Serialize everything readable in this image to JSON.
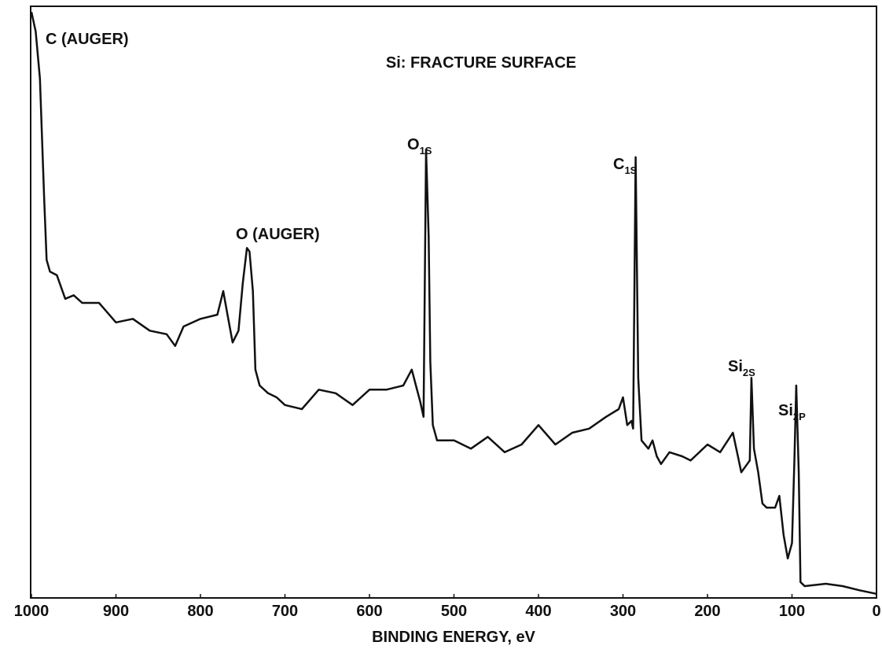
{
  "chart_data": {
    "type": "line",
    "title": "Si: FRACTURE SURFACE",
    "x_label": "BINDING ENERGY, eV",
    "xlim": [
      1000,
      0
    ],
    "xticks": [
      1000,
      900,
      800,
      700,
      600,
      500,
      400,
      300,
      200,
      100,
      0
    ],
    "ylim": [
      0,
      100
    ],
    "color": "#111111",
    "annotations": {
      "c_auger": "C (AUGER)",
      "o_auger": "O (AUGER)",
      "o1s": {
        "main": "O",
        "sub": "1S"
      },
      "c1s": {
        "main": "C",
        "sub": "1S"
      },
      "si2s": {
        "main": "Si",
        "sub": "2S"
      },
      "si2p": {
        "main": "Si",
        "sub": "2P"
      }
    },
    "x": [
      1000,
      995,
      990,
      985,
      982,
      978,
      970,
      960,
      950,
      940,
      920,
      900,
      880,
      860,
      840,
      830,
      820,
      800,
      780,
      773,
      768,
      762,
      755,
      750,
      745,
      742,
      738,
      735,
      730,
      720,
      710,
      700,
      680,
      660,
      640,
      620,
      600,
      580,
      560,
      550,
      545,
      540,
      536,
      533,
      530,
      528,
      525,
      520,
      500,
      480,
      460,
      440,
      420,
      400,
      380,
      360,
      340,
      320,
      305,
      300,
      295,
      290,
      288,
      285,
      282,
      278,
      270,
      265,
      260,
      255,
      245,
      230,
      220,
      200,
      185,
      170,
      165,
      160,
      150,
      148,
      145,
      140,
      135,
      130,
      120,
      115,
      110,
      105,
      100,
      97,
      95,
      92,
      90,
      85,
      60,
      40,
      20,
      0
    ],
    "values": [
      99.3,
      96,
      88,
      68,
      57.3,
      55.3,
      54.7,
      50.7,
      51.3,
      50,
      50,
      46.7,
      47.3,
      45.3,
      44.7,
      42.7,
      46,
      47.3,
      48,
      52,
      48,
      43.3,
      45.3,
      53.3,
      59.3,
      58.7,
      52,
      38.7,
      36,
      34.7,
      34,
      32.7,
      32,
      35.3,
      34.7,
      32.7,
      35.3,
      35.3,
      36,
      38.7,
      36,
      33.3,
      30.7,
      76,
      61.3,
      40,
      29.3,
      26.7,
      26.7,
      25.3,
      27.3,
      24.7,
      26,
      29.3,
      26,
      28,
      28.7,
      30.7,
      32,
      34,
      29.3,
      30,
      28.7,
      74.7,
      37.3,
      26.7,
      25.3,
      26.7,
      24,
      22.7,
      24.7,
      24,
      23.3,
      26,
      24.7,
      28,
      24.7,
      21.3,
      23.3,
      37.3,
      25.3,
      21.3,
      16,
      15.3,
      15.3,
      17.3,
      10.7,
      6.7,
      9.3,
      24,
      36,
      21.3,
      2.7,
      2,
      2.4,
      2,
      1.3,
      0.7
    ]
  }
}
